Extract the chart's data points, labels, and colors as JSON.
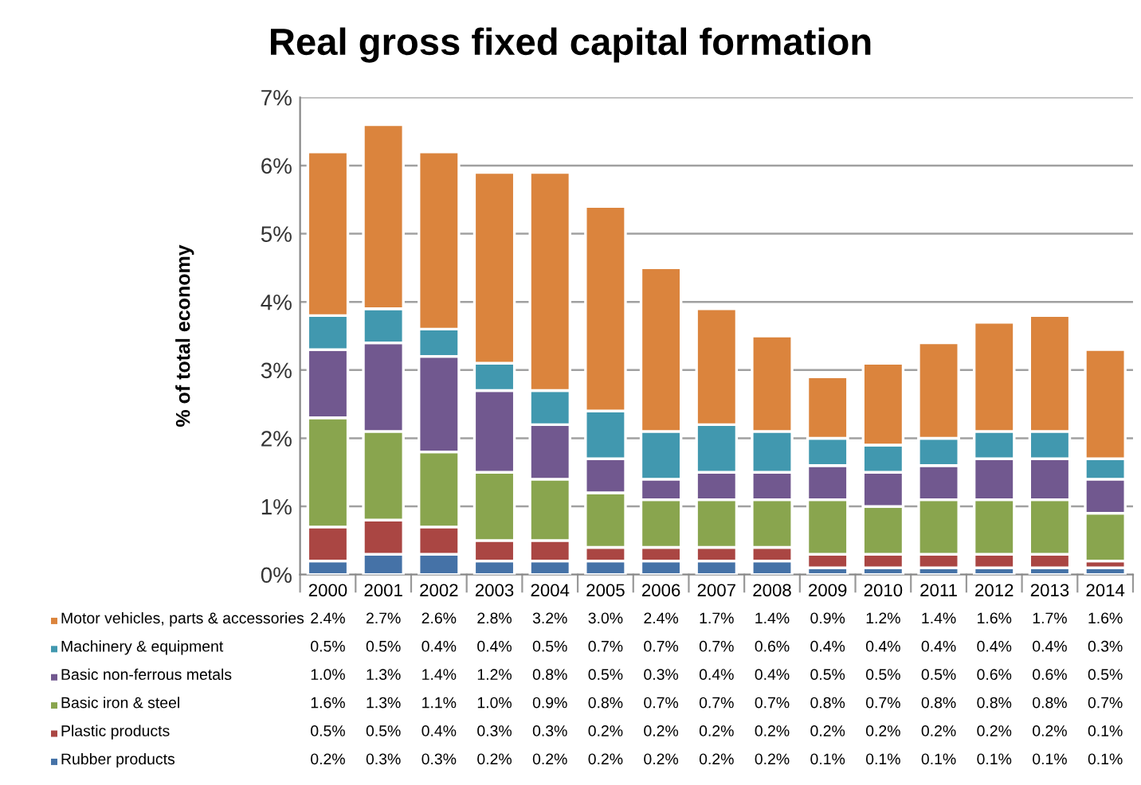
{
  "chart_data": {
    "type": "bar",
    "stacked": true,
    "title": "Real gross fixed capital formation",
    "ylabel": "% of total economy",
    "categories": [
      "2000",
      "2001",
      "2002",
      "2003",
      "2004",
      "2005",
      "2006",
      "2007",
      "2008",
      "2009",
      "2010",
      "2011",
      "2012",
      "2013",
      "2014"
    ],
    "series": [
      {
        "name": "Rubber products",
        "color": "#4572a7",
        "values": [
          0.2,
          0.3,
          0.3,
          0.2,
          0.2,
          0.2,
          0.2,
          0.2,
          0.2,
          0.1,
          0.1,
          0.1,
          0.1,
          0.1,
          0.1
        ],
        "value_labels": [
          "0.2%",
          "0.3%",
          "0.3%",
          "0.2%",
          "0.2%",
          "0.2%",
          "0.2%",
          "0.2%",
          "0.2%",
          "0.1%",
          "0.1%",
          "0.1%",
          "0.1%",
          "0.1%",
          "0.1%"
        ]
      },
      {
        "name": "Plastic products",
        "color": "#aa4643",
        "values": [
          0.5,
          0.5,
          0.4,
          0.3,
          0.3,
          0.2,
          0.2,
          0.2,
          0.2,
          0.2,
          0.2,
          0.2,
          0.2,
          0.2,
          0.1
        ],
        "value_labels": [
          "0.5%",
          "0.5%",
          "0.4%",
          "0.3%",
          "0.3%",
          "0.2%",
          "0.2%",
          "0.2%",
          "0.2%",
          "0.2%",
          "0.2%",
          "0.2%",
          "0.2%",
          "0.2%",
          "0.1%"
        ]
      },
      {
        "name": "Basic iron & steel",
        "color": "#89a54e",
        "values": [
          1.6,
          1.3,
          1.1,
          1.0,
          0.9,
          0.8,
          0.7,
          0.7,
          0.7,
          0.8,
          0.7,
          0.8,
          0.8,
          0.8,
          0.7
        ],
        "value_labels": [
          "1.6%",
          "1.3%",
          "1.1%",
          "1.0%",
          "0.9%",
          "0.8%",
          "0.7%",
          "0.7%",
          "0.7%",
          "0.8%",
          "0.7%",
          "0.8%",
          "0.8%",
          "0.8%",
          "0.7%"
        ]
      },
      {
        "name": "Basic non-ferrous metals",
        "color": "#71588f",
        "values": [
          1.0,
          1.3,
          1.4,
          1.2,
          0.8,
          0.5,
          0.3,
          0.4,
          0.4,
          0.5,
          0.5,
          0.5,
          0.6,
          0.6,
          0.5
        ],
        "value_labels": [
          "1.0%",
          "1.3%",
          "1.4%",
          "1.2%",
          "0.8%",
          "0.5%",
          "0.3%",
          "0.4%",
          "0.4%",
          "0.5%",
          "0.5%",
          "0.5%",
          "0.6%",
          "0.6%",
          "0.5%"
        ]
      },
      {
        "name": "Machinery & equipment",
        "color": "#4198af",
        "values": [
          0.5,
          0.5,
          0.4,
          0.4,
          0.5,
          0.7,
          0.7,
          0.7,
          0.6,
          0.4,
          0.4,
          0.4,
          0.4,
          0.4,
          0.3
        ],
        "value_labels": [
          "0.5%",
          "0.5%",
          "0.4%",
          "0.4%",
          "0.5%",
          "0.7%",
          "0.7%",
          "0.7%",
          "0.6%",
          "0.4%",
          "0.4%",
          "0.4%",
          "0.4%",
          "0.4%",
          "0.3%"
        ]
      },
      {
        "name": "Motor vehicles, parts & accessories",
        "color": "#db843d",
        "values": [
          2.4,
          2.7,
          2.6,
          2.8,
          3.2,
          3.0,
          2.4,
          1.7,
          1.4,
          0.9,
          1.2,
          1.4,
          1.6,
          1.7,
          1.6
        ],
        "value_labels": [
          "2.4%",
          "2.7%",
          "2.6%",
          "2.8%",
          "3.2%",
          "3.0%",
          "2.4%",
          "1.7%",
          "1.4%",
          "0.9%",
          "1.2%",
          "1.4%",
          "1.6%",
          "1.7%",
          "1.6%"
        ]
      }
    ],
    "ylim": [
      0,
      7
    ],
    "yticks": [
      {
        "value": 0,
        "label": "0%"
      },
      {
        "value": 1,
        "label": "1%"
      },
      {
        "value": 2,
        "label": "2%"
      },
      {
        "value": 3,
        "label": "3%"
      },
      {
        "value": 4,
        "label": "4%"
      },
      {
        "value": 5,
        "label": "5%"
      },
      {
        "value": 6,
        "label": "6%"
      },
      {
        "value": 7,
        "label": "7%"
      }
    ],
    "grid": "y",
    "legend": "bottom"
  }
}
